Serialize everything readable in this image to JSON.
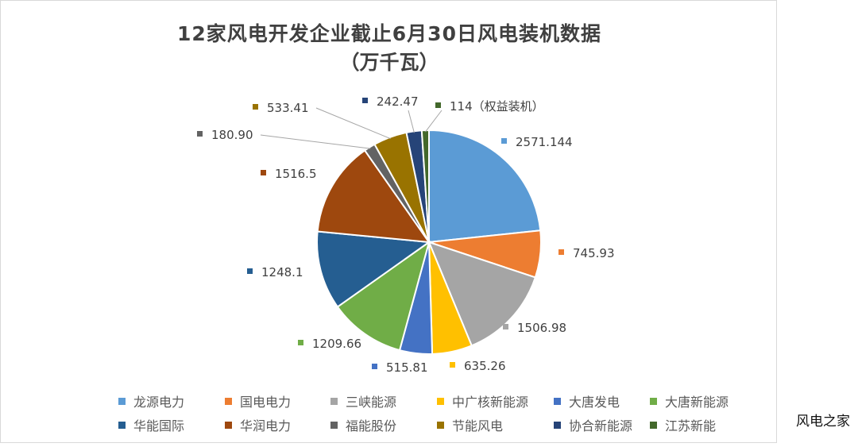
{
  "chart_data": {
    "type": "pie",
    "title": "12家风电开发企业截止6月30日风电装机数据",
    "subtitle": "（万千瓦）",
    "legend_position": "bottom",
    "slices": [
      {
        "name": "龙源电力",
        "value": 2571.144,
        "label": "2571.144",
        "color": "#5b9bd5"
      },
      {
        "name": "国电电力",
        "value": 745.93,
        "label": "745.93",
        "color": "#ed7d31"
      },
      {
        "name": "三峡能源",
        "value": 1506.98,
        "label": "1506.98",
        "color": "#a5a5a5"
      },
      {
        "name": "中广核新能源",
        "value": 635.26,
        "label": "635.26",
        "color": "#ffc000"
      },
      {
        "name": "大唐发电",
        "value": 515.81,
        "label": "515.81",
        "color": "#4472c4"
      },
      {
        "name": "大唐新能源",
        "value": 1209.66,
        "label": "1209.66",
        "color": "#70ad47"
      },
      {
        "name": "华能国际",
        "value": 1248.1,
        "label": "1248.1",
        "color": "#255e91"
      },
      {
        "name": "华润电力",
        "value": 1516.5,
        "label": "1516.5",
        "color": "#9e480e"
      },
      {
        "name": "福能股份",
        "value": 180.9,
        "label": "180.90",
        "color": "#636363"
      },
      {
        "name": "节能风电",
        "value": 533.41,
        "label": "533.41",
        "color": "#997300"
      },
      {
        "name": "协合新能源",
        "value": 242.47,
        "label": "242.47",
        "color": "#264478"
      },
      {
        "name": "江苏新能",
        "value": 114,
        "label": "114（权益装机）",
        "color": "#43682b"
      }
    ]
  },
  "watermark": "风电之家"
}
